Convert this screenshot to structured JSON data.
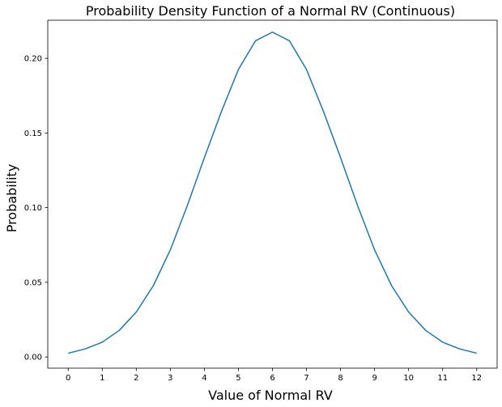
{
  "chart_data": {
    "type": "line",
    "title": "Probability Density Function of a Normal RV (Continuous)",
    "xlabel": "Value of Normal RV",
    "ylabel": "Probability",
    "xlim": [
      -0.6,
      12.6
    ],
    "ylim": [
      -0.0075,
      0.2255
    ],
    "x_ticks": [
      0,
      1,
      2,
      3,
      4,
      5,
      6,
      7,
      8,
      9,
      10,
      11,
      12
    ],
    "x_tick_labels": [
      "0",
      "1",
      "2",
      "3",
      "4",
      "5",
      "6",
      "7",
      "8",
      "9",
      "10",
      "11",
      "12"
    ],
    "y_ticks": [
      0.0,
      0.05,
      0.1,
      0.15,
      0.2
    ],
    "y_tick_labels": [
      "0.00",
      "0.05",
      "0.10",
      "0.15",
      "0.20"
    ],
    "grid": false,
    "line_color": "#1f77b4",
    "series": [
      {
        "x": [
          0,
          0.5,
          1,
          1.5,
          2,
          2.5,
          3,
          3.5,
          4,
          4.5,
          5,
          5.5,
          6,
          6.5,
          7,
          7.5,
          8,
          8.5,
          9,
          9.5,
          10,
          10.5,
          11,
          11.5,
          12
        ],
        "y": [
          0.0025,
          0.0054,
          0.0099,
          0.0178,
          0.0301,
          0.0477,
          0.0717,
          0.1014,
          0.1335,
          0.1643,
          0.1925,
          0.2117,
          0.2175,
          0.2117,
          0.1925,
          0.1643,
          0.1335,
          0.1014,
          0.0717,
          0.0477,
          0.0301,
          0.0178,
          0.0099,
          0.0054,
          0.0025
        ]
      }
    ]
  }
}
